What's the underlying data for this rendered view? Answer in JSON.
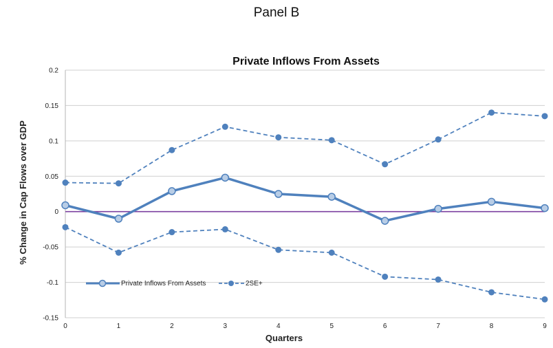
{
  "panel_label": "Panel B",
  "chart_data": {
    "type": "line",
    "title": "Private Inflows From Assets",
    "xlabel": "Quarters",
    "ylabel": "% Change in Cap Flows over GDP",
    "x": [
      0,
      1,
      2,
      3,
      4,
      5,
      6,
      7,
      8,
      9
    ],
    "xlim": [
      0,
      9
    ],
    "ylim": [
      -0.15,
      0.2
    ],
    "y_ticks": [
      "0.2",
      "0.15",
      "0.1",
      "0.05",
      "0",
      "-0.05",
      "-0.1",
      "-0.15"
    ],
    "y_tick_values": [
      0.2,
      0.15,
      0.1,
      0.05,
      0,
      -0.05,
      -0.1,
      -0.15
    ],
    "x_ticks": [
      "0",
      "1",
      "2",
      "3",
      "4",
      "5",
      "6",
      "7",
      "8",
      "9"
    ],
    "grid": true,
    "legend_position": "bottom-left",
    "zero_line_color": "#7b3fa0",
    "series": [
      {
        "name": "Private Inflows From Assets",
        "style": "solid",
        "color": "#4f81bd",
        "values": [
          0.009,
          -0.01,
          0.029,
          0.048,
          0.025,
          0.021,
          -0.013,
          0.004,
          0.014,
          0.005
        ]
      },
      {
        "name": "2SE+",
        "style": "dashed",
        "color": "#4f81bd",
        "values": [
          0.041,
          0.04,
          0.087,
          0.12,
          0.105,
          0.101,
          0.067,
          0.102,
          0.14,
          0.135
        ]
      },
      {
        "style": "dashed",
        "color": "#4f81bd",
        "values": [
          -0.022,
          -0.058,
          -0.029,
          -0.025,
          -0.054,
          -0.058,
          -0.092,
          -0.096,
          -0.114,
          -0.124
        ]
      }
    ]
  }
}
